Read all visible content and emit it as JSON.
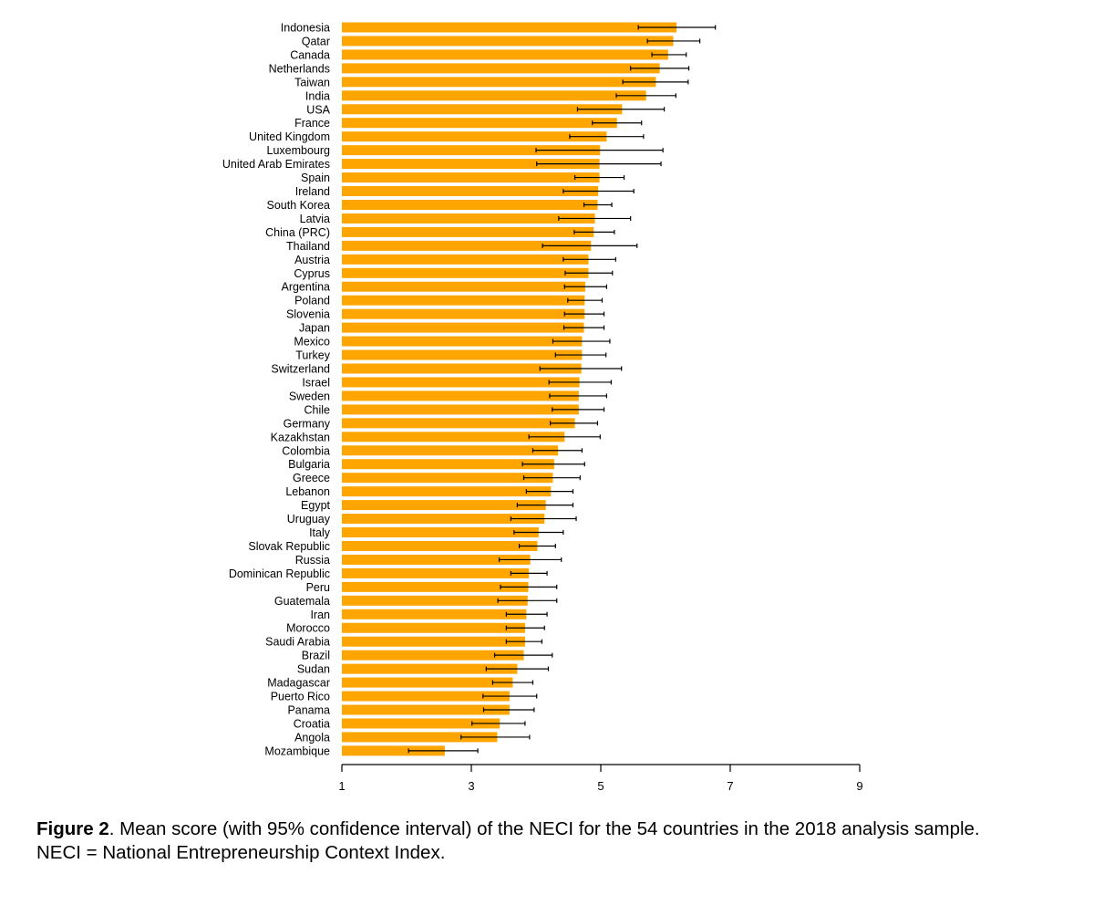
{
  "chart_data": {
    "type": "bar",
    "orientation": "horizontal",
    "bar_color": "#FFA500",
    "error_bar_color": "#000000",
    "categories": [
      "Indonesia",
      "Qatar",
      "Canada",
      "Netherlands",
      "Taiwan",
      "India",
      "USA",
      "France",
      "United Kingdom",
      "Luxembourg",
      "United Arab Emirates",
      "Spain",
      "Ireland",
      "South Korea",
      "Latvia",
      "China (PRC)",
      "Thailand",
      "Austria",
      "Cyprus",
      "Argentina",
      "Poland",
      "Slovenia",
      "Japan",
      "Mexico",
      "Turkey",
      "Switzerland",
      "Israel",
      "Sweden",
      "Chile",
      "Germany",
      "Kazakhstan",
      "Colombia",
      "Bulgaria",
      "Greece",
      "Lebanon",
      "Egypt",
      "Uruguay",
      "Italy",
      "Slovak Republic",
      "Russia",
      "Dominican Republic",
      "Peru",
      "Guatemala",
      "Iran",
      "Morocco",
      "Saudi Arabia",
      "Brazil",
      "Sudan",
      "Madagascar",
      "Puerto Rico",
      "Panama",
      "Croatia",
      "Angola",
      "Mozambique"
    ],
    "values": [
      6.17,
      6.12,
      6.04,
      5.91,
      5.85,
      5.7,
      5.33,
      5.25,
      5.09,
      4.99,
      4.98,
      4.98,
      4.96,
      4.95,
      4.91,
      4.89,
      4.85,
      4.81,
      4.81,
      4.76,
      4.75,
      4.75,
      4.74,
      4.71,
      4.71,
      4.7,
      4.67,
      4.66,
      4.66,
      4.6,
      4.44,
      4.34,
      4.28,
      4.26,
      4.23,
      4.15,
      4.13,
      4.04,
      4.02,
      3.91,
      3.89,
      3.88,
      3.87,
      3.85,
      3.83,
      3.83,
      3.81,
      3.71,
      3.64,
      3.59,
      3.59,
      3.44,
      3.4,
      2.59
    ],
    "ci_lower": [
      5.58,
      5.72,
      5.79,
      5.46,
      5.34,
      5.24,
      4.64,
      4.87,
      4.52,
      4.0,
      4.01,
      4.6,
      4.42,
      4.74,
      4.35,
      4.59,
      4.1,
      4.42,
      4.45,
      4.44,
      4.49,
      4.44,
      4.43,
      4.26,
      4.3,
      4.06,
      4.2,
      4.21,
      4.25,
      4.22,
      3.89,
      3.95,
      3.79,
      3.81,
      3.85,
      3.71,
      3.61,
      3.66,
      3.74,
      3.43,
      3.61,
      3.45,
      3.41,
      3.54,
      3.54,
      3.54,
      3.36,
      3.23,
      3.33,
      3.18,
      3.19,
      3.01,
      2.84,
      2.03
    ],
    "ci_upper": [
      6.77,
      6.53,
      6.32,
      6.36,
      6.35,
      6.16,
      5.98,
      5.63,
      5.66,
      5.96,
      5.93,
      5.36,
      5.51,
      5.17,
      5.46,
      5.21,
      5.56,
      5.23,
      5.18,
      5.09,
      5.02,
      5.05,
      5.05,
      5.14,
      5.08,
      5.32,
      5.16,
      5.09,
      5.05,
      4.95,
      4.99,
      4.71,
      4.75,
      4.68,
      4.57,
      4.57,
      4.62,
      4.42,
      4.3,
      4.39,
      4.17,
      4.32,
      4.32,
      4.17,
      4.13,
      4.09,
      4.25,
      4.19,
      3.95,
      4.01,
      3.97,
      3.83,
      3.9,
      3.1
    ],
    "xlim": [
      1,
      9
    ],
    "xticks": [
      "1",
      "3",
      "5",
      "7",
      "9"
    ],
    "xlabel": "",
    "ylabel": "",
    "title": "",
    "grid": false,
    "legend": "none"
  },
  "caption": {
    "label": "Figure 2",
    "text": ". Mean score (with 95% confidence interval) of the NECI for the 54 countries in the 2018 analysis sample.",
    "note": "NECI = National Entrepreneurship Context Index."
  }
}
